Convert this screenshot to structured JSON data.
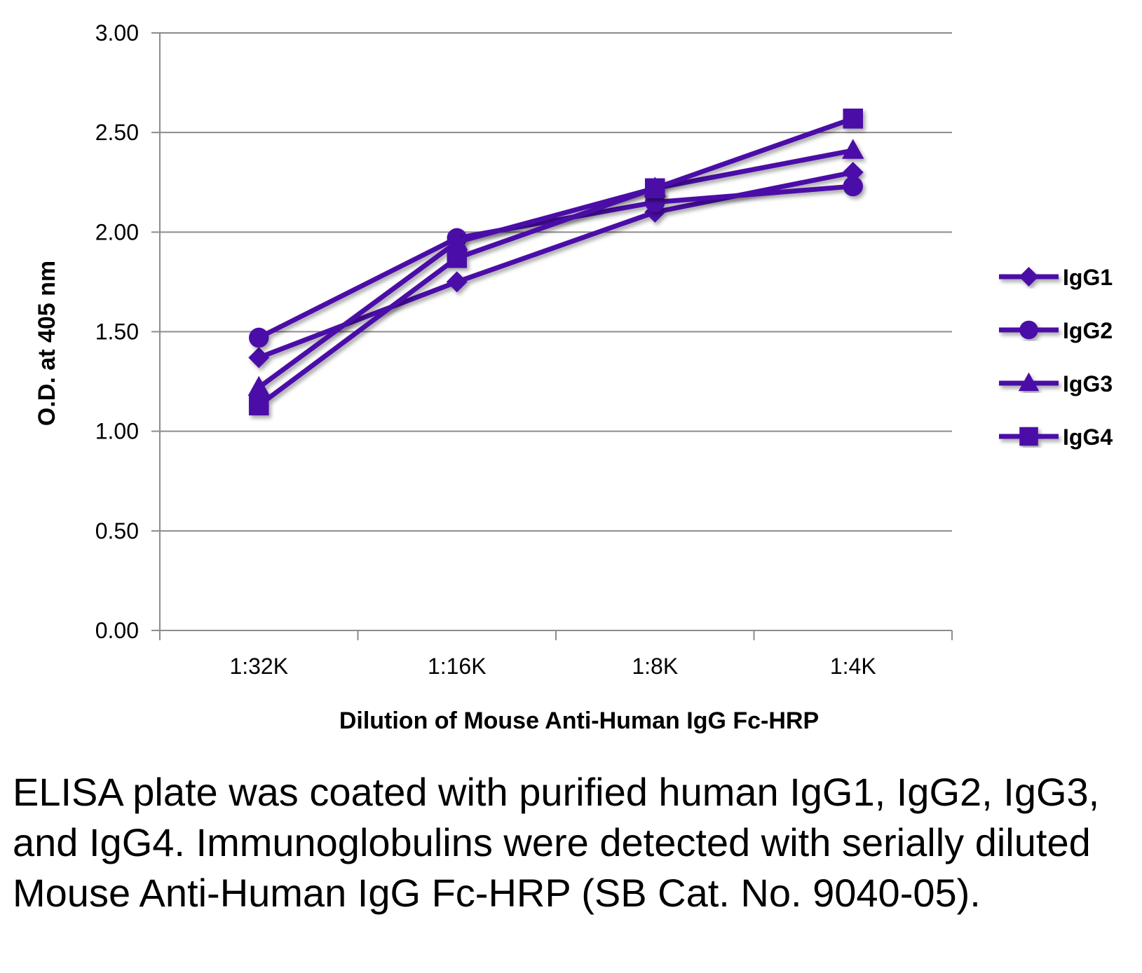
{
  "chart_data": {
    "type": "line",
    "xlabel": "Dilution of Mouse Anti-Human IgG Fc-HRP",
    "ylabel": "O.D. at 405 nm",
    "categories": [
      "1:32K",
      "1:16K",
      "1:8K",
      "1:4K"
    ],
    "ylim": [
      0,
      3
    ],
    "yticks": [
      "0.00",
      "0.50",
      "1.00",
      "1.50",
      "2.00",
      "2.50",
      "3.00"
    ],
    "grid": true,
    "legend_position": "right",
    "line_color": "#4B0FA8",
    "series": [
      {
        "name": "IgG1",
        "marker": "diamond",
        "values": [
          1.37,
          1.75,
          2.1,
          2.3
        ]
      },
      {
        "name": "IgG2",
        "marker": "circle",
        "values": [
          1.47,
          1.97,
          2.15,
          2.23
        ]
      },
      {
        "name": "IgG3",
        "marker": "triangle",
        "values": [
          1.22,
          1.95,
          2.22,
          2.41
        ]
      },
      {
        "name": "IgG4",
        "marker": "square",
        "values": [
          1.13,
          1.87,
          2.22,
          2.57
        ]
      }
    ]
  },
  "caption": "ELISA plate was coated with purified human IgG1, IgG2, IgG3, and IgG4.  Immunoglobulins were detected with serially diluted Mouse Anti-Human IgG Fc-HRP (SB Cat. No. 9040-05)."
}
